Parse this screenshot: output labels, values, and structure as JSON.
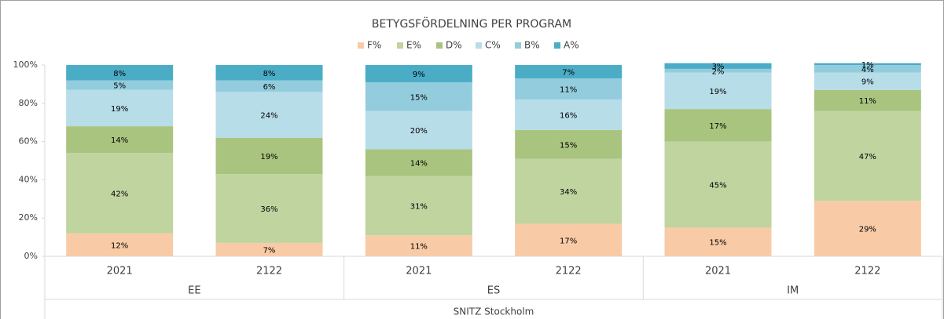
{
  "chart_data": {
    "type": "stacked_bar",
    "title": "BETYGSFÖRDELNING PER PROGRAM",
    "categories": [
      "2021",
      "2122",
      "2021",
      "2122",
      "2021",
      "2122"
    ],
    "groups": [
      "EE",
      "ES",
      "IM"
    ],
    "group_title": "SNITZ Stockholm",
    "ylim": [
      0,
      100
    ],
    "yticks": [
      {
        "value": 0,
        "label": "0%"
      },
      {
        "value": 20,
        "label": "20%"
      },
      {
        "value": 40,
        "label": "40%"
      },
      {
        "value": 60,
        "label": "60%"
      },
      {
        "value": 80,
        "label": "80%"
      },
      {
        "value": 100,
        "label": "100%"
      }
    ],
    "legend": "top",
    "series": [
      {
        "name": "F%",
        "color": "#f8cba6",
        "values": [
          12,
          7,
          11,
          17,
          15,
          29
        ],
        "value_labels": [
          "12%",
          "7%",
          "11%",
          "17%",
          "15%",
          "29%"
        ]
      },
      {
        "name": "E%",
        "color": "#c0d4a0",
        "values": [
          42,
          36,
          31,
          34,
          45,
          47
        ],
        "value_labels": [
          "42%",
          "36%",
          "31%",
          "34%",
          "45%",
          "47%"
        ]
      },
      {
        "name": "D%",
        "color": "#a9c47f",
        "values": [
          14,
          19,
          14,
          15,
          17,
          11
        ],
        "value_labels": [
          "14%",
          "19%",
          "14%",
          "15%",
          "17%",
          "11%"
        ]
      },
      {
        "name": "C%",
        "color": "#b7dde8",
        "values": [
          19,
          24,
          20,
          16,
          19,
          9
        ],
        "value_labels": [
          "19%",
          "24%",
          "20%",
          "16%",
          "19%",
          "9%"
        ]
      },
      {
        "name": "B%",
        "color": "#93cddd",
        "values": [
          5,
          6,
          15,
          11,
          2,
          4
        ],
        "value_labels": [
          "5%",
          "6%",
          "15%",
          "11%",
          "2%",
          "4%"
        ]
      },
      {
        "name": "A%",
        "color": "#4bacc6",
        "values": [
          8,
          8,
          9,
          7,
          3,
          1
        ],
        "value_labels": [
          "8%",
          "8%",
          "9%",
          "7%",
          "3%",
          "1%"
        ]
      }
    ]
  }
}
